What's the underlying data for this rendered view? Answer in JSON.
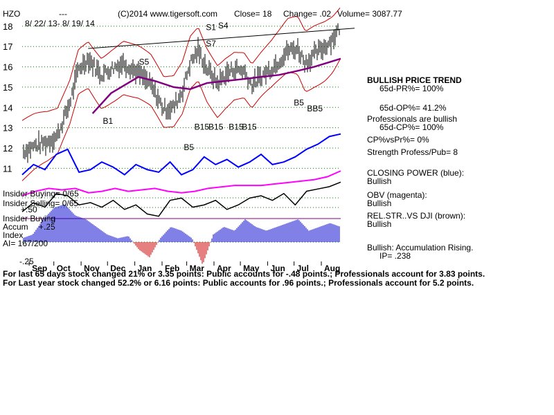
{
  "header": {
    "ticker": "HZO",
    "dashes": "---",
    "date_range": "8/ 22/ 13- 8/ 19/ 14",
    "copyright": "(C)2014 www.tigersoft.com",
    "close": "Close= 18",
    "change": "Change= .02",
    "volume": "Volume= 3087.77"
  },
  "chart_data": {
    "type": "line",
    "y_ticks": [
      "18",
      "17",
      "16",
      "15",
      "14",
      "13",
      "12",
      "11"
    ],
    "y_tick_values": [
      18,
      17,
      16,
      15,
      14,
      13,
      12,
      11
    ],
    "ylim": [
      10.5,
      18.2
    ],
    "x_tick_labels": [
      "Sep",
      "Oct",
      "Nov",
      "Dec",
      "Jan",
      "Feb",
      "Mar",
      "Apr",
      "May",
      "Jun",
      "Jul",
      "Aug"
    ],
    "grid": true,
    "price_series": {
      "name": "price",
      "x": [
        "2013-08-22",
        "2013-09-05",
        "2013-09-20",
        "2013-10-01",
        "2013-10-15",
        "2013-10-25",
        "2013-11-05",
        "2013-11-20",
        "2013-12-01",
        "2013-12-15",
        "2014-01-01",
        "2014-01-15",
        "2014-01-30",
        "2014-02-10",
        "2014-02-20",
        "2014-03-01",
        "2014-03-10",
        "2014-03-20",
        "2014-04-01",
        "2014-04-10",
        "2014-04-20",
        "2014-05-01",
        "2014-05-10",
        "2014-05-20",
        "2014-06-01",
        "2014-06-10",
        "2014-06-20",
        "2014-07-01",
        "2014-07-10",
        "2014-07-20",
        "2014-08-01",
        "2014-08-10",
        "2014-08-19"
      ],
      "values": [
        11.8,
        12.1,
        12.3,
        12.6,
        14.2,
        15.9,
        16.4,
        15.6,
        15.9,
        16.2,
        15.7,
        15.1,
        13.9,
        14.0,
        14.8,
        16.2,
        16.8,
        15.9,
        15.2,
        15.6,
        15.9,
        15.8,
        15.1,
        15.5,
        15.9,
        16.3,
        16.8,
        16.9,
        16.2,
        16.6,
        17.0,
        17.4,
        18.0
      ]
    },
    "ma_series": {
      "name": "ma",
      "x": [
        "2013-11-10",
        "2013-12-01",
        "2014-01-01",
        "2014-01-20",
        "2014-02-10",
        "2014-03-01",
        "2014-03-20",
        "2014-04-10",
        "2014-05-01",
        "2014-05-20",
        "2014-06-10",
        "2014-07-01",
        "2014-07-20",
        "2014-08-19"
      ],
      "values": [
        13.7,
        14.7,
        15.5,
        15.3,
        15.0,
        14.9,
        15.2,
        15.3,
        15.4,
        15.5,
        15.6,
        15.8,
        16.0,
        16.4
      ]
    },
    "resistance_line": {
      "x": [
        "2013-11-05",
        "2014-08-19"
      ],
      "values": [
        16.9,
        17.9
      ]
    },
    "signals": [
      {
        "label": "S1",
        "x": "2014-03-25",
        "y": 17.8
      },
      {
        "label": "S4",
        "x": "2014-04-08",
        "y": 17.9
      },
      {
        "label": "S7",
        "x": "2014-03-25",
        "y": 17.0
      },
      {
        "label": "S5",
        "x": "2014-01-08",
        "y": 16.1
      },
      {
        "label": "B1",
        "x": "2013-11-28",
        "y": 13.2
      },
      {
        "label": "B5",
        "x": "2014-02-28",
        "y": 11.9
      },
      {
        "label": "B15",
        "x": "2014-03-12",
        "y": 12.9
      },
      {
        "label": "B15",
        "x": "2014-03-28",
        "y": 12.9
      },
      {
        "label": "B15",
        "x": "2014-04-20",
        "y": 12.9
      },
      {
        "label": "B15",
        "x": "2014-05-05",
        "y": 12.9
      },
      {
        "label": "B5",
        "x": "2014-07-03",
        "y": 14.1
      },
      {
        "label": "BB5",
        "x": "2014-07-18",
        "y": 13.8
      }
    ],
    "closing_power": {
      "name": "closing power",
      "values": [
        11.2,
        11.6,
        11.4,
        12.0,
        12.2,
        11.3,
        11.4,
        11.7,
        11.5,
        11.2,
        11.6,
        11.4,
        11.3,
        11.7,
        11.2,
        11.4,
        11.9,
        11.6,
        11.8,
        11.5,
        11.7,
        12.0,
        11.6,
        11.7,
        11.9,
        12.2,
        12.4,
        12.7,
        12.8
      ]
    },
    "obv": {
      "name": "obv",
      "values": [
        10.45,
        10.6,
        10.7,
        10.65,
        10.7,
        10.55,
        10.6,
        10.7,
        10.6,
        10.65,
        10.7,
        10.6,
        10.55,
        10.6,
        10.7,
        10.75,
        10.8,
        10.8,
        10.8,
        10.85,
        10.9,
        10.95,
        11.0,
        11.1,
        11.3
      ]
    },
    "relative_strength": {
      "name": "rel str",
      "values": [
        9.9,
        10.3,
        10.1,
        10.7,
        10.6,
        10.2,
        10.3,
        10.1,
        10.4,
        10.0,
        10.2,
        9.8,
        9.7,
        10.4,
        10.5,
        10.1,
        10.2,
        10.4,
        10.0,
        10.2,
        10.5,
        10.6,
        10.4,
        10.7,
        10.2,
        10.8,
        10.9,
        11.0,
        11.2
      ]
    },
    "accumulation_index": {
      "values": [
        0.05,
        0.1,
        0.3,
        0.45,
        0.5,
        0.35,
        0.3,
        0.2,
        0.1,
        0.05,
        0.08,
        -0.1,
        -0.2,
        0.05,
        0.2,
        0.15,
        0.05,
        -0.3,
        0.1,
        0.2,
        0.15,
        0.3,
        0.2,
        0.15,
        0.2,
        0.25,
        0.3,
        0.15,
        0.2,
        0.25,
        0.2
      ],
      "ylim": [
        -0.25,
        0.5
      ]
    }
  },
  "left_labels": {
    "insider_buying": "Insider Buying= 0/65",
    "insider_selling": "Insider Selling= 0/65",
    "plus50": "+.50",
    "insider_buying2": "Insider Buying",
    "accum": "Accum",
    "index": "Index",
    "ai": "AI= 167/200",
    "minus25": "-.25",
    "pct25": "+.25"
  },
  "panel": {
    "bullish_trend": "BULLISH PRICE TREND",
    "pr": "65d-PR%= 100%",
    "op": "65d-OP%= 41.2%",
    "professionals": "Professionals are bullish",
    "cp": "65d-CP%= 100%",
    "cpvspr": "CP%vsPr%=  0%",
    "strength": "Strength Profess/Pub= 8",
    "closing_power_label": "CLOSING POWER (blue):",
    "closing_power_val": "Bullish",
    "obv_label": "OBV (magenta):",
    "obv_val": "Bullish",
    "relstr_label": "REL.STR..VS DJI (brown):",
    "relstr_val": "Bullish",
    "accum": "Bullish: Accumulation Rising.",
    "ip": "IP=  .238"
  },
  "summary": {
    "line1": "For last 65 days stock changed  21% or  3.35 points:  Public accounts for -.48 points.;  Professionals account for  3.83 points.",
    "line2": "For Last year stock changed  52.2% or  6.16 points:  Public accounts for  .96 points.;  Professionals account for  5.2 points."
  },
  "colors": {
    "price_bars": "#000000",
    "moving_average": "#800080",
    "bands": "#cc0000",
    "closing_power": "#0000ff",
    "obv": "#ff00ff",
    "rel_str": "#000000",
    "accum_pos": "#0000cc",
    "accum_neg": "#cc0000",
    "grid": "#008000",
    "signal_text": "#0000ff"
  }
}
